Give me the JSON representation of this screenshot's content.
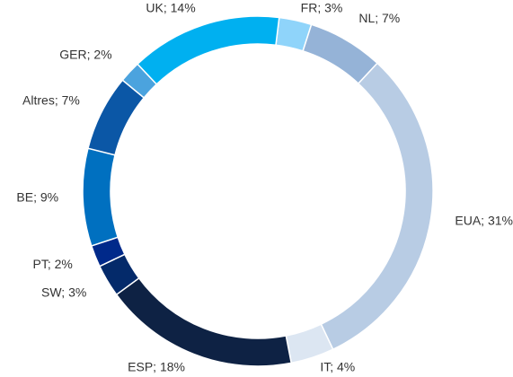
{
  "chart_data": {
    "type": "donut",
    "labels": [
      "FR; 3%",
      "NL; 7%",
      "EUA; 31%",
      "IT; 4%",
      "ESP; 18%",
      "SW; 3%",
      "PT; 2%",
      "BE; 9%",
      "Altres; 7%",
      "GER; 2%",
      "UK; 14%"
    ],
    "values": [
      3,
      7,
      31,
      4,
      18,
      3,
      2,
      9,
      7,
      2,
      14
    ],
    "colors": [
      "#8fd4fa",
      "#95b3d7",
      "#b8cce4",
      "#dce6f2",
      "#0e2244",
      "#042a6a",
      "#00298a",
      "#0070c0",
      "#0b57a6",
      "#4ba3de",
      "#00b0f0"
    ]
  }
}
